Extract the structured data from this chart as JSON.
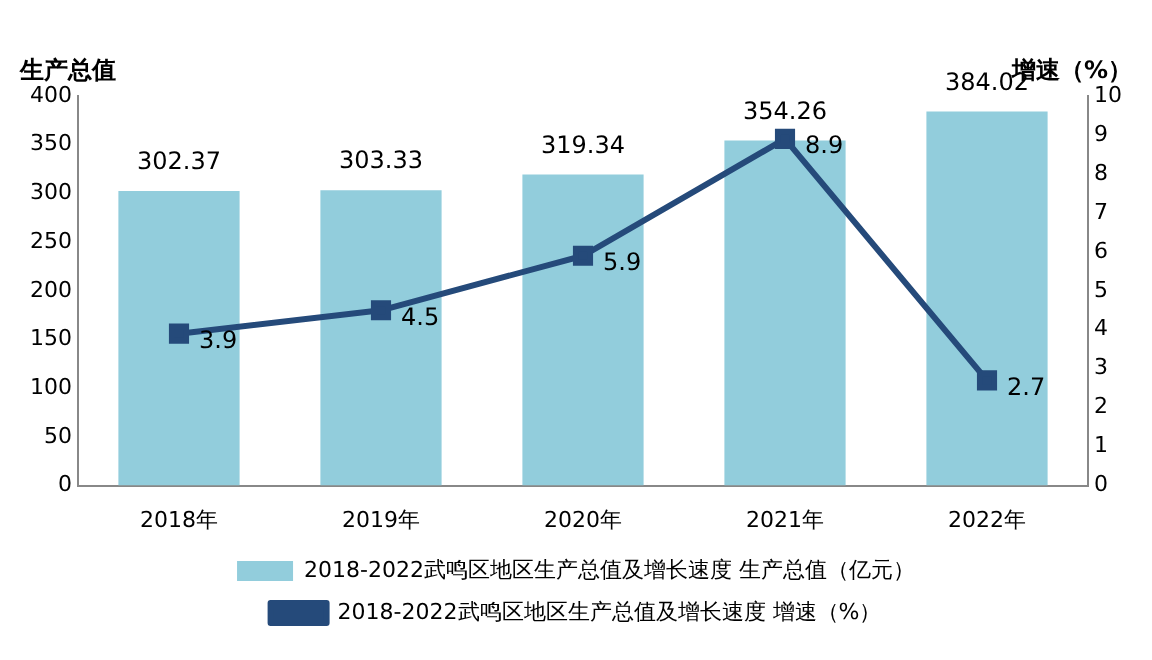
{
  "chart_data": {
    "type": "bar",
    "categories": [
      "2018年",
      "2019年",
      "2020年",
      "2021年",
      "2022年"
    ],
    "ylabel": "生产总值",
    "y2label": "增速（%）",
    "series": [
      {
        "name": "2018-2022武鸣区地区生产总值及增长速度 生产总值（亿元）",
        "color": "#92cddc",
        "values": [
          302.37,
          303.33,
          319.34,
          354.26,
          384.02
        ]
      },
      {
        "name": "2018-2022武鸣区地区生产总值及增长速度 增速（%）",
        "type": "line",
        "axis": "y2",
        "color": "#254a7a",
        "values": [
          3.9,
          4.5,
          5.9,
          8.9,
          2.7
        ]
      }
    ],
    "ylim": [
      0,
      400
    ],
    "yticks": [
      0,
      50,
      100,
      150,
      200,
      250,
      300,
      350,
      400
    ],
    "y2lim": [
      0,
      10
    ],
    "y2ticks": [
      0,
      1,
      2,
      3,
      4,
      5,
      6,
      7,
      8,
      9,
      10
    ],
    "data_labels": true,
    "grid": false,
    "legend": "bottom",
    "marker": "square",
    "line_style": "solid"
  }
}
